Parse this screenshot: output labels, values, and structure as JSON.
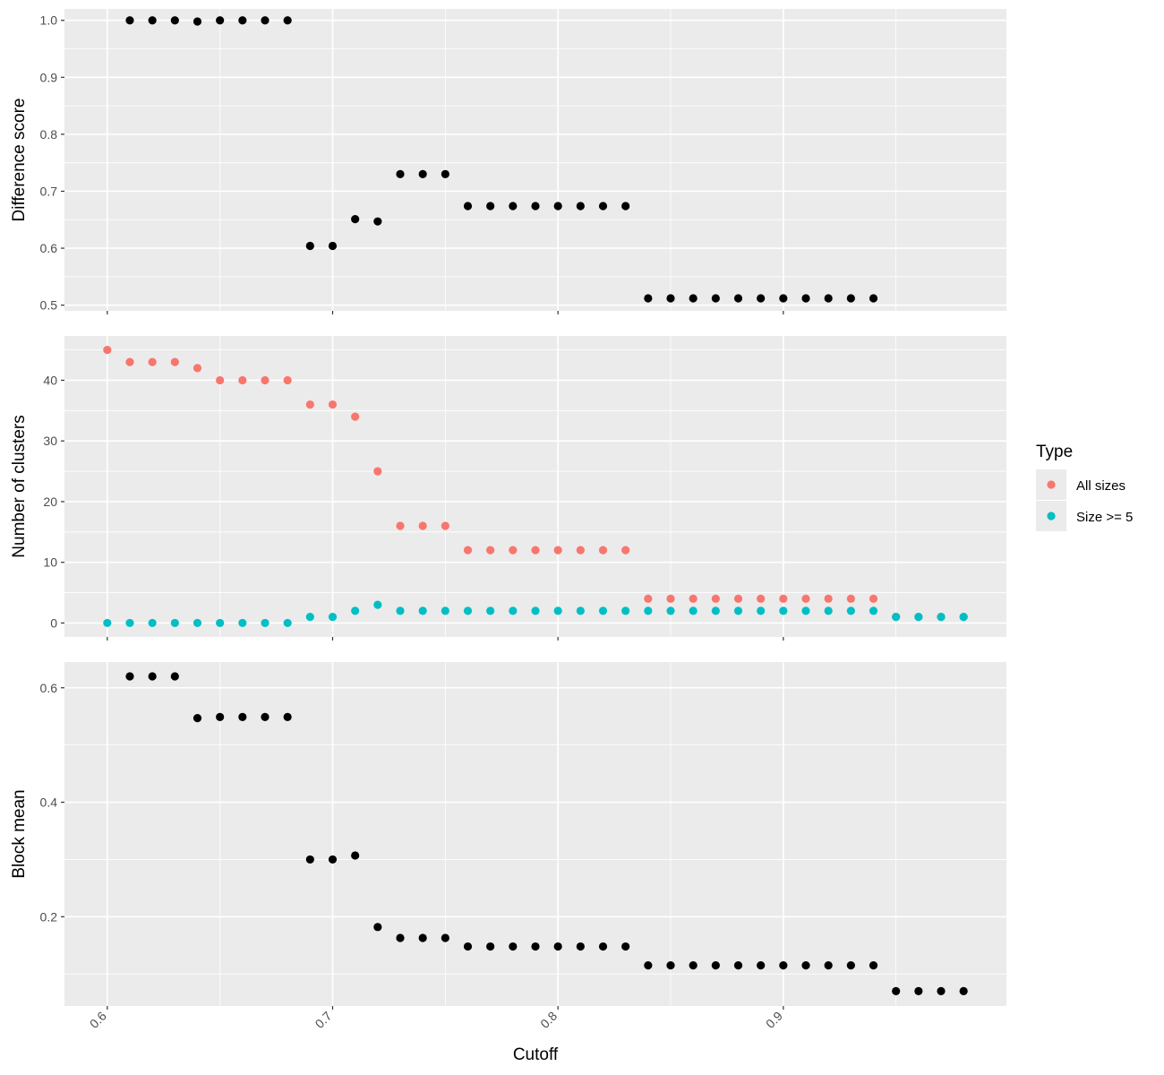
{
  "chart_data": [
    {
      "type": "scatter",
      "title": "",
      "xlabel": "",
      "ylabel": "Difference score",
      "xlim": [
        0.6,
        0.98
      ],
      "ylim": [
        0.49,
        1.02
      ],
      "yticks": [
        0.5,
        0.6,
        0.7,
        0.8,
        0.9,
        1.0
      ],
      "ytick_labels": [
        "0.5",
        "0.6",
        "0.7",
        "0.8",
        "0.9",
        "1.0"
      ],
      "grid": true,
      "series": [
        {
          "color": "#000000",
          "points": [
            [
              0.61,
              1.0
            ],
            [
              0.62,
              1.0
            ],
            [
              0.63,
              1.0
            ],
            [
              0.64,
              0.998
            ],
            [
              0.65,
              1.0
            ],
            [
              0.66,
              1.0
            ],
            [
              0.67,
              1.0
            ],
            [
              0.68,
              1.0
            ],
            [
              0.69,
              0.604
            ],
            [
              0.7,
              0.604
            ],
            [
              0.71,
              0.651
            ],
            [
              0.72,
              0.647
            ],
            [
              0.73,
              0.73
            ],
            [
              0.74,
              0.73
            ],
            [
              0.75,
              0.73
            ],
            [
              0.76,
              0.674
            ],
            [
              0.77,
              0.674
            ],
            [
              0.78,
              0.674
            ],
            [
              0.79,
              0.674
            ],
            [
              0.8,
              0.674
            ],
            [
              0.81,
              0.674
            ],
            [
              0.82,
              0.674
            ],
            [
              0.83,
              0.674
            ],
            [
              0.84,
              0.512
            ],
            [
              0.85,
              0.512
            ],
            [
              0.86,
              0.512
            ],
            [
              0.87,
              0.512
            ],
            [
              0.88,
              0.512
            ],
            [
              0.89,
              0.512
            ],
            [
              0.9,
              0.512
            ],
            [
              0.91,
              0.512
            ],
            [
              0.92,
              0.512
            ],
            [
              0.93,
              0.512
            ],
            [
              0.94,
              0.512
            ]
          ]
        }
      ]
    },
    {
      "type": "scatter",
      "title": "",
      "xlabel": "",
      "ylabel": "Number of clusters",
      "xlim": [
        0.6,
        0.98
      ],
      "ylim": [
        -2.3,
        47.3
      ],
      "yticks": [
        0,
        10,
        20,
        30,
        40
      ],
      "ytick_labels": [
        "0",
        "10",
        "20",
        "30",
        "40"
      ],
      "grid": true,
      "legend": {
        "title": "Type",
        "position": "right"
      },
      "series": [
        {
          "name": "All sizes",
          "color": "#f8766d",
          "points": [
            [
              0.6,
              45
            ],
            [
              0.61,
              43
            ],
            [
              0.62,
              43
            ],
            [
              0.63,
              43
            ],
            [
              0.64,
              42
            ],
            [
              0.65,
              40
            ],
            [
              0.66,
              40
            ],
            [
              0.67,
              40
            ],
            [
              0.68,
              40
            ],
            [
              0.69,
              36
            ],
            [
              0.7,
              36
            ],
            [
              0.71,
              34
            ],
            [
              0.72,
              25
            ],
            [
              0.73,
              16
            ],
            [
              0.74,
              16
            ],
            [
              0.75,
              16
            ],
            [
              0.76,
              12
            ],
            [
              0.77,
              12
            ],
            [
              0.78,
              12
            ],
            [
              0.79,
              12
            ],
            [
              0.8,
              12
            ],
            [
              0.81,
              12
            ],
            [
              0.82,
              12
            ],
            [
              0.83,
              12
            ],
            [
              0.84,
              4
            ],
            [
              0.85,
              4
            ],
            [
              0.86,
              4
            ],
            [
              0.87,
              4
            ],
            [
              0.88,
              4
            ],
            [
              0.89,
              4
            ],
            [
              0.9,
              4
            ],
            [
              0.91,
              4
            ],
            [
              0.92,
              4
            ],
            [
              0.93,
              4
            ],
            [
              0.94,
              4
            ],
            [
              0.95,
              1
            ],
            [
              0.96,
              1
            ],
            [
              0.97,
              1
            ],
            [
              0.98,
              1
            ]
          ]
        },
        {
          "name": "Size >= 5",
          "color": "#00bfc4",
          "points": [
            [
              0.6,
              0
            ],
            [
              0.61,
              0
            ],
            [
              0.62,
              0
            ],
            [
              0.63,
              0
            ],
            [
              0.64,
              0
            ],
            [
              0.65,
              0
            ],
            [
              0.66,
              0
            ],
            [
              0.67,
              0
            ],
            [
              0.68,
              0
            ],
            [
              0.69,
              1
            ],
            [
              0.7,
              1
            ],
            [
              0.71,
              2
            ],
            [
              0.72,
              3
            ],
            [
              0.73,
              2
            ],
            [
              0.74,
              2
            ],
            [
              0.75,
              2
            ],
            [
              0.76,
              2
            ],
            [
              0.77,
              2
            ],
            [
              0.78,
              2
            ],
            [
              0.79,
              2
            ],
            [
              0.8,
              2
            ],
            [
              0.81,
              2
            ],
            [
              0.82,
              2
            ],
            [
              0.83,
              2
            ],
            [
              0.84,
              2
            ],
            [
              0.85,
              2
            ],
            [
              0.86,
              2
            ],
            [
              0.87,
              2
            ],
            [
              0.88,
              2
            ],
            [
              0.89,
              2
            ],
            [
              0.9,
              2
            ],
            [
              0.91,
              2
            ],
            [
              0.92,
              2
            ],
            [
              0.93,
              2
            ],
            [
              0.94,
              2
            ],
            [
              0.95,
              1
            ],
            [
              0.96,
              1
            ],
            [
              0.97,
              1
            ],
            [
              0.98,
              1
            ]
          ]
        }
      ]
    },
    {
      "type": "scatter",
      "title": "",
      "xlabel": "Cutoff",
      "ylabel": "Block mean",
      "xlim": [
        0.6,
        0.98
      ],
      "ylim": [
        0.044,
        0.645
      ],
      "yticks": [
        0.2,
        0.4,
        0.6
      ],
      "ytick_labels": [
        "0.2",
        "0.4",
        "0.6"
      ],
      "xticks": [
        0.6,
        0.7,
        0.8,
        0.9
      ],
      "xtick_labels": [
        "0.6",
        "0.7",
        "0.8",
        "0.9"
      ],
      "grid": true,
      "series": [
        {
          "color": "#000000",
          "points": [
            [
              0.61,
              0.62
            ],
            [
              0.62,
              0.62
            ],
            [
              0.63,
              0.62
            ],
            [
              0.64,
              0.547
            ],
            [
              0.65,
              0.549
            ],
            [
              0.66,
              0.549
            ],
            [
              0.67,
              0.549
            ],
            [
              0.68,
              0.549
            ],
            [
              0.69,
              0.3
            ],
            [
              0.7,
              0.3
            ],
            [
              0.71,
              0.307
            ],
            [
              0.72,
              0.182
            ],
            [
              0.73,
              0.163
            ],
            [
              0.74,
              0.163
            ],
            [
              0.75,
              0.163
            ],
            [
              0.76,
              0.148
            ],
            [
              0.77,
              0.148
            ],
            [
              0.78,
              0.148
            ],
            [
              0.79,
              0.148
            ],
            [
              0.8,
              0.148
            ],
            [
              0.81,
              0.148
            ],
            [
              0.82,
              0.148
            ],
            [
              0.83,
              0.148
            ],
            [
              0.84,
              0.115
            ],
            [
              0.85,
              0.115
            ],
            [
              0.86,
              0.115
            ],
            [
              0.87,
              0.115
            ],
            [
              0.88,
              0.115
            ],
            [
              0.89,
              0.115
            ],
            [
              0.9,
              0.115
            ],
            [
              0.91,
              0.115
            ],
            [
              0.92,
              0.115
            ],
            [
              0.93,
              0.115
            ],
            [
              0.94,
              0.115
            ],
            [
              0.95,
              0.07
            ],
            [
              0.96,
              0.07
            ],
            [
              0.97,
              0.07
            ],
            [
              0.98,
              0.07
            ]
          ]
        }
      ]
    }
  ]
}
